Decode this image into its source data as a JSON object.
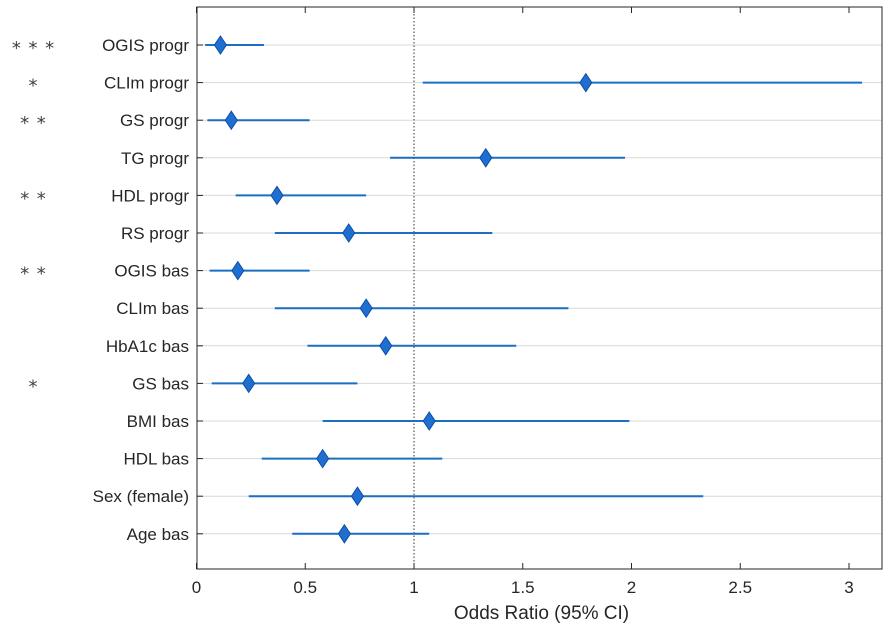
{
  "chart_data": {
    "type": "forest",
    "xlabel": "Odds Ratio (95% CI)",
    "xlim": [
      0,
      3.15
    ],
    "xticks": [
      0,
      0.5,
      1,
      1.5,
      2,
      2.5,
      3
    ],
    "xtick_labels": [
      "0",
      "0.5",
      "1",
      "1.5",
      "2",
      "2.5",
      "3"
    ],
    "reference_line": 1,
    "grid": "horizontal",
    "colors": {
      "marker": "#1f6fd1",
      "marker_edge": "#0c4ea8",
      "line": "#1a6fc4",
      "grid": "#d9d9d9"
    },
    "rows": [
      {
        "label": "OGIS progr",
        "significance": "***",
        "or": 0.11,
        "ci": [
          0.04,
          0.31
        ]
      },
      {
        "label": "CLIm progr",
        "significance": "*",
        "or": 1.79,
        "ci": [
          1.04,
          3.06
        ]
      },
      {
        "label": "GS progr",
        "significance": "**",
        "or": 0.16,
        "ci": [
          0.05,
          0.52
        ]
      },
      {
        "label": "TG progr",
        "significance": "",
        "or": 1.33,
        "ci": [
          0.89,
          1.97
        ]
      },
      {
        "label": "HDL progr",
        "significance": "**",
        "or": 0.37,
        "ci": [
          0.18,
          0.78
        ]
      },
      {
        "label": "RS progr",
        "significance": "",
        "or": 0.7,
        "ci": [
          0.36,
          1.36
        ]
      },
      {
        "label": "OGIS bas",
        "significance": "**",
        "or": 0.19,
        "ci": [
          0.06,
          0.52
        ]
      },
      {
        "label": "CLIm bas",
        "significance": "",
        "or": 0.78,
        "ci": [
          0.36,
          1.71
        ]
      },
      {
        "label": "HbA1c bas",
        "significance": "",
        "or": 0.87,
        "ci": [
          0.51,
          1.47
        ]
      },
      {
        "label": "GS bas",
        "significance": "*",
        "or": 0.24,
        "ci": [
          0.07,
          0.74
        ]
      },
      {
        "label": "BMI bas",
        "significance": "",
        "or": 1.07,
        "ci": [
          0.58,
          1.99
        ]
      },
      {
        "label": "HDL bas",
        "significance": "",
        "or": 0.58,
        "ci": [
          0.3,
          1.13
        ]
      },
      {
        "label": "Sex (female)",
        "significance": "",
        "or": 0.74,
        "ci": [
          0.24,
          2.33
        ]
      },
      {
        "label": "Age bas",
        "significance": "",
        "or": 0.68,
        "ci": [
          0.44,
          1.07
        ]
      }
    ]
  }
}
